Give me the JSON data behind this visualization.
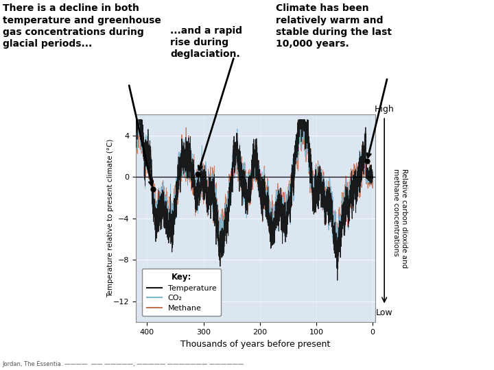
{
  "title_left": "There is a decline in both\ntemperature and greenhouse\ngas concentrations during\nglacial periods...",
  "title_right": "Climate has been\nrelatively warm and\nstable during the last\n10,000 years.",
  "annotation_mid": "...and a rapid\nrise during\ndeglaciation.",
  "ylabel_left": "Temperature relative to present climate (°C)",
  "ylabel_right": "Relative carbon dioxide and\nmethane concentrations",
  "xlabel": "Thousands of years before present",
  "right_high": "High",
  "right_low": "Low",
  "legend_title": "Key:",
  "legend_items": [
    "Temperature",
    "CO₂",
    "Methane"
  ],
  "legend_colors": [
    "#111111",
    "#7ab8d4",
    "#c87050"
  ],
  "xlim": [
    420,
    -5
  ],
  "ylim": [
    -14,
    6
  ],
  "yticks": [
    4,
    0,
    -4,
    -8,
    -12
  ],
  "xticks": [
    400,
    300,
    200,
    100,
    0
  ],
  "plot_bg": "#dce6f0",
  "source_text": "Jordan, The Essentia. ————  —— —————, ————— ——————— ——————"
}
